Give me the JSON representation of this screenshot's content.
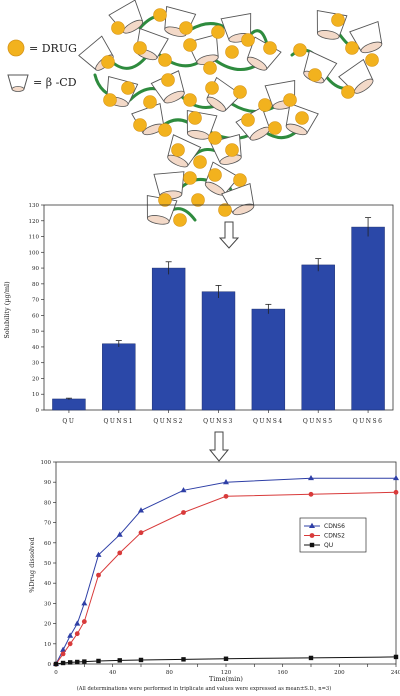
{
  "legend_top": {
    "drug_label": "= DRUG",
    "bcd_label": "= β -CD"
  },
  "arrows": [
    "down-arrow",
    "down-arrow"
  ],
  "colors": {
    "drug": "#F2B21E",
    "cd_fill": "#F3D9C8",
    "cd_stroke": "#555555",
    "linker": "#2E8B3E",
    "bar": "#2B48A8",
    "cdns6": "#2E3FA6",
    "cdns2": "#D83A3A",
    "qu": "#111111"
  },
  "chart_data": [
    {
      "type": "bar",
      "categories": [
        "QU",
        "QUNS1",
        "QUNS2",
        "QUNS3",
        "QUNS4",
        "QUNS5",
        "QUNS6"
      ],
      "values": [
        7,
        42,
        90,
        75,
        64,
        92,
        116
      ],
      "errors": [
        0.5,
        2,
        4,
        4,
        3,
        4,
        6
      ],
      "ylabel": "Solubility (µg/ml)",
      "ylim": [
        0,
        130
      ],
      "yticks": [
        0,
        10,
        20,
        30,
        40,
        50,
        60,
        70,
        80,
        90,
        100,
        110,
        120,
        130
      ]
    },
    {
      "type": "line",
      "xlabel": "Time(min)",
      "ylabel": "%Drug dissolved",
      "xlim": [
        0,
        240
      ],
      "ylim": [
        0,
        100
      ],
      "xticks": [
        0,
        20,
        40,
        60,
        80,
        100,
        120,
        140,
        160,
        180,
        200,
        220,
        240
      ],
      "yticks": [
        0,
        10,
        20,
        30,
        40,
        50,
        60,
        70,
        80,
        90,
        100
      ],
      "legend_position": "right",
      "series": [
        {
          "name": "CDNS6",
          "marker": "triangle",
          "x": [
            0,
            5,
            10,
            15,
            20,
            30,
            45,
            60,
            90,
            120,
            180,
            240
          ],
          "y": [
            0,
            7,
            14,
            20,
            30,
            54,
            64,
            76,
            86,
            90,
            92,
            92
          ]
        },
        {
          "name": "CDNS2",
          "marker": "circle",
          "x": [
            0,
            5,
            10,
            15,
            20,
            30,
            45,
            60,
            90,
            120,
            180,
            240
          ],
          "y": [
            0,
            5,
            10,
            15,
            21,
            44,
            55,
            65,
            75,
            83,
            84,
            85
          ]
        },
        {
          "name": "QU",
          "marker": "square",
          "x": [
            0,
            5,
            10,
            15,
            20,
            30,
            45,
            60,
            90,
            120,
            180,
            240
          ],
          "y": [
            0,
            0.5,
            0.8,
            1,
            1.2,
            1.5,
            1.8,
            2,
            2.3,
            2.6,
            3,
            3.5
          ]
        }
      ]
    }
  ],
  "footnote": "(All determinations were performed in triplicate and values were expressed as mean±S.D., n=3)"
}
